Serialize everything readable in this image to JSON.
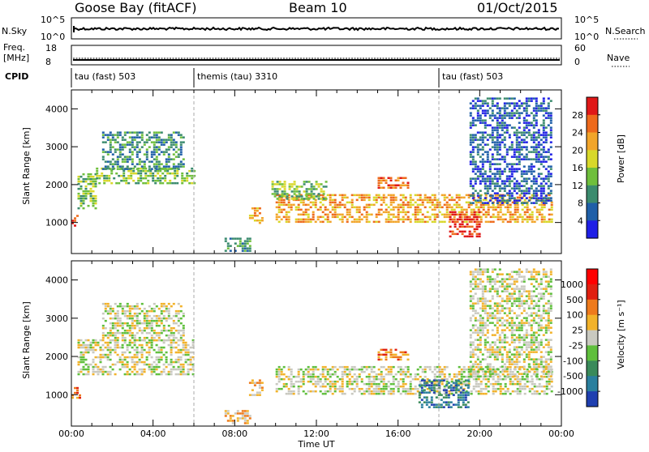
{
  "header": {
    "site": "Goose Bay (fitACF)",
    "beam": "Beam 10",
    "date": "01/Oct/2015"
  },
  "strip1": {
    "left_label": "N.Sky",
    "right_label": "N.Search",
    "left_ticks": [
      "10^5",
      "10^0"
    ],
    "right_ticks": [
      "10^5",
      "10^0"
    ]
  },
  "strip2": {
    "left_label_1": "Freq.",
    "left_label_2": "[MHz]",
    "right_label": "Nave",
    "left_ticks": [
      "18",
      "8"
    ],
    "right_ticks": [
      "60",
      "0"
    ]
  },
  "cpid": {
    "label": "CPID",
    "segments": [
      {
        "name": "tau (fast) 503",
        "start_h": 0
      },
      {
        "name": "themis (tau) 3310",
        "start_h": 6
      },
      {
        "name": "tau (fast) 503",
        "start_h": 18
      }
    ]
  },
  "chart_data": [
    {
      "type": "heatmap",
      "title": "Power",
      "xlabel": "",
      "ylabel": "Slant Range [km]",
      "xlim": [
        0,
        24
      ],
      "ylim": [
        180,
        4500
      ],
      "yticks": [
        1000,
        2000,
        3000,
        4000
      ],
      "colorbar": {
        "label": "Power [dB]",
        "ticks": [
          "4",
          "8",
          "12",
          "16",
          "20",
          "24",
          "28"
        ],
        "colors": [
          "#1f1fe6",
          "#1f5fa8",
          "#3b8b6e",
          "#6fbf3c",
          "#d8d82a",
          "#f2a52a",
          "#ee6a1c",
          "#e01818"
        ]
      },
      "regions": [
        {
          "h0": 0.0,
          "h1": 0.4,
          "r0": 900,
          "r1": 1200,
          "level": 7
        },
        {
          "h0": 0.3,
          "h1": 1.2,
          "r0": 1400,
          "r1": 2300,
          "level": 3
        },
        {
          "h0": 1.2,
          "h1": 6.0,
          "r0": 2050,
          "r1": 2450,
          "level": 3
        },
        {
          "h0": 1.5,
          "h1": 5.5,
          "r0": 2400,
          "r1": 3400,
          "level": 2
        },
        {
          "h0": 7.5,
          "h1": 8.8,
          "r0": 250,
          "r1": 600,
          "level": 2
        },
        {
          "h0": 8.7,
          "h1": 9.4,
          "r0": 1000,
          "r1": 1400,
          "level": 5
        },
        {
          "h0": 10.0,
          "h1": 23.5,
          "r0": 1000,
          "r1": 1750,
          "level": 5
        },
        {
          "h0": 9.8,
          "h1": 12.5,
          "r0": 1600,
          "r1": 2100,
          "level": 3
        },
        {
          "h0": 15.0,
          "h1": 16.5,
          "r0": 1900,
          "r1": 2200,
          "level": 6
        },
        {
          "h0": 18.5,
          "h1": 20.0,
          "r0": 600,
          "r1": 1300,
          "level": 7
        },
        {
          "h0": 19.5,
          "h1": 23.5,
          "r0": 1500,
          "r1": 4300,
          "level": 1
        }
      ]
    },
    {
      "type": "heatmap",
      "title": "Velocity",
      "xlabel": "Time UT",
      "ylabel": "Slant Range [km]",
      "xlim": [
        0,
        24
      ],
      "ylim": [
        180,
        4500
      ],
      "xticks": [
        "00:00",
        "04:00",
        "08:00",
        "12:00",
        "16:00",
        "20:00",
        "00:00"
      ],
      "yticks": [
        1000,
        2000,
        3000,
        4000
      ],
      "colorbar": {
        "label": "Velocity [m s⁻¹]",
        "ticks": [
          "1000",
          "500",
          "100",
          "25",
          "-25",
          "-100",
          "-500",
          "-1000"
        ],
        "colors": [
          "#1f3fb0",
          "#2a7f9e",
          "#3a8a5a",
          "#5fbf3c",
          "#c9c9c0",
          "#f2b22a",
          "#ee7a1c",
          "#e02010",
          "#ff0000"
        ]
      },
      "regions": [
        {
          "h0": 0.0,
          "h1": 0.4,
          "r0": 900,
          "r1": 1200,
          "level": 6
        },
        {
          "h0": 0.3,
          "h1": 6.0,
          "r0": 1500,
          "r1": 2450,
          "level": 4
        },
        {
          "h0": 1.5,
          "h1": 5.5,
          "r0": 2400,
          "r1": 3400,
          "level": 4
        },
        {
          "h0": 7.5,
          "h1": 8.8,
          "r0": 250,
          "r1": 600,
          "level": 5
        },
        {
          "h0": 8.7,
          "h1": 9.4,
          "r0": 1000,
          "r1": 1400,
          "level": 5
        },
        {
          "h0": 10.0,
          "h1": 23.5,
          "r0": 1000,
          "r1": 1750,
          "level": 4
        },
        {
          "h0": 15.0,
          "h1": 16.5,
          "r0": 1900,
          "r1": 2200,
          "level": 6
        },
        {
          "h0": 17.0,
          "h1": 19.5,
          "r0": 700,
          "r1": 1400,
          "level": 1
        },
        {
          "h0": 19.5,
          "h1": 23.5,
          "r0": 1500,
          "r1": 4300,
          "level": 4
        }
      ]
    }
  ]
}
